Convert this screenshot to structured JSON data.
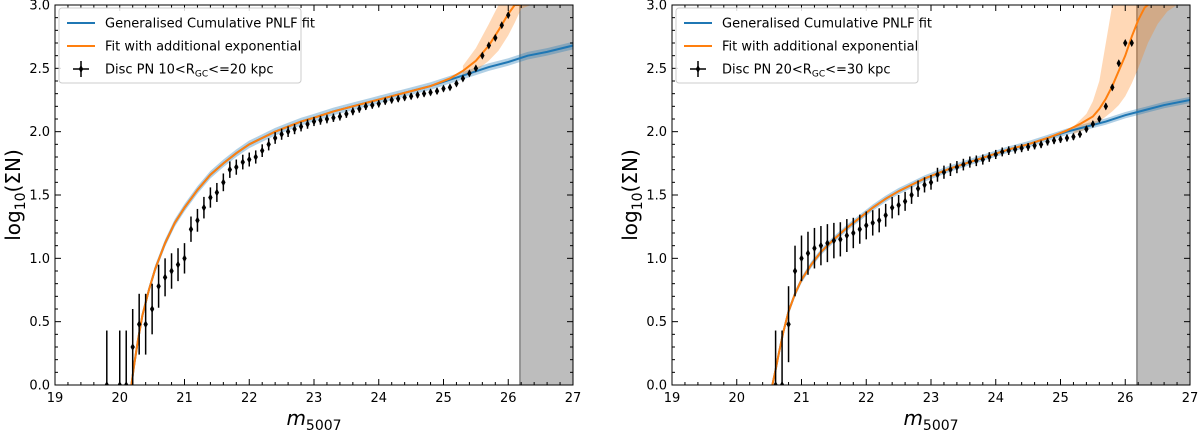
{
  "chart_data": [
    {
      "type": "line",
      "xlabel": "m",
      "xlabel_sub": "5007",
      "ylabel_main": "log",
      "ylabel_sub": "10",
      "ylabel_tail": "(ΣN)",
      "xlim": [
        19,
        27
      ],
      "ylim": [
        0,
        3.0
      ],
      "x_ticks": [
        19,
        20,
        21,
        22,
        23,
        24,
        25,
        26,
        27
      ],
      "y_ticks": [
        0.0,
        0.5,
        1.0,
        1.5,
        2.0,
        2.5,
        3.0
      ],
      "x_tick_labels": [
        "19",
        "20",
        "21",
        "22",
        "23",
        "24",
        "25",
        "26",
        "27"
      ],
      "y_tick_labels": [
        "0.0",
        "0.5",
        "1.0",
        "1.5",
        "2.0",
        "2.5",
        "3.0"
      ],
      "shaded_region": [
        26.18,
        27
      ],
      "legend": {
        "position": "top-left",
        "entries": [
          {
            "label": "Generalised Cumulative PNLF fit",
            "color": "#1f77b4",
            "kind": "line"
          },
          {
            "label": "Fit with additional exponential",
            "color": "#ff7f0e",
            "kind": "line"
          },
          {
            "kind": "errorbar",
            "color": "#000000",
            "pre": "Disc PN 10<R",
            "sub": "GC",
            "post": "<=20 kpc"
          }
        ]
      },
      "series": [
        {
          "name": "Generalised Cumulative PNLF fit",
          "color": "#1f77b4",
          "x": [
            20.18,
            20.22,
            20.28,
            20.35,
            20.45,
            20.55,
            20.7,
            20.85,
            21.0,
            21.2,
            21.4,
            21.6,
            21.8,
            22.0,
            22.2,
            22.4,
            22.6,
            22.8,
            23.0,
            23.3,
            23.6,
            23.9,
            24.2,
            24.5,
            24.8,
            25.1,
            25.4,
            25.7,
            26.0,
            26.3,
            26.6,
            27.0
          ],
          "y": [
            0.0,
            0.15,
            0.35,
            0.55,
            0.75,
            0.92,
            1.12,
            1.28,
            1.4,
            1.54,
            1.66,
            1.75,
            1.83,
            1.9,
            1.95,
            2.0,
            2.04,
            2.08,
            2.11,
            2.16,
            2.2,
            2.24,
            2.28,
            2.32,
            2.36,
            2.41,
            2.46,
            2.51,
            2.55,
            2.6,
            2.63,
            2.68
          ],
          "band_halfwidth": 0.03
        },
        {
          "name": "Fit with additional exponential",
          "color": "#ff7f0e",
          "x": [
            20.18,
            20.22,
            20.28,
            20.35,
            20.45,
            20.55,
            20.7,
            20.85,
            21.0,
            21.2,
            21.4,
            21.6,
            21.8,
            22.0,
            22.2,
            22.4,
            22.6,
            22.8,
            23.0,
            23.3,
            23.6,
            23.9,
            24.2,
            24.5,
            24.8,
            25.1,
            25.3,
            25.5,
            25.7,
            25.85,
            26.0,
            26.1,
            26.2
          ],
          "y": [
            0.0,
            0.15,
            0.35,
            0.55,
            0.75,
            0.92,
            1.12,
            1.28,
            1.4,
            1.54,
            1.66,
            1.75,
            1.83,
            1.9,
            1.95,
            2.0,
            2.04,
            2.08,
            2.11,
            2.16,
            2.2,
            2.24,
            2.28,
            2.32,
            2.36,
            2.42,
            2.48,
            2.56,
            2.68,
            2.8,
            2.93,
            3.0,
            3.0
          ],
          "band": {
            "x": [
              25.3,
              25.5,
              25.7,
              25.85,
              26.0,
              26.1,
              26.2,
              26.35
            ],
            "upper": [
              2.52,
              2.66,
              2.85,
              3.0,
              3.0,
              3.0,
              3.0,
              3.0
            ],
            "lower": [
              2.44,
              2.48,
              2.56,
              2.64,
              2.76,
              2.86,
              2.97,
              3.0
            ]
          }
        },
        {
          "name": "Disc PN 10<R_GC<=20 kpc",
          "kind": "errorbar",
          "x": [
            19.8,
            20.0,
            20.1,
            20.2,
            20.3,
            20.4,
            20.5,
            20.6,
            20.7,
            20.8,
            20.9,
            21.0,
            21.1,
            21.2,
            21.3,
            21.4,
            21.5,
            21.6,
            21.7,
            21.8,
            21.9,
            22.0,
            22.1,
            22.2,
            22.3,
            22.4,
            22.5,
            22.6,
            22.7,
            22.8,
            22.9,
            23.0,
            23.1,
            23.2,
            23.3,
            23.4,
            23.5,
            23.6,
            23.7,
            23.8,
            23.9,
            24.0,
            24.1,
            24.2,
            24.3,
            24.4,
            24.5,
            24.6,
            24.7,
            24.8,
            24.9,
            25.0,
            25.1,
            25.2,
            25.3,
            25.4,
            25.5,
            25.6,
            25.7,
            25.8,
            25.9,
            26.0
          ],
          "y": [
            0.0,
            0.0,
            0.0,
            0.3,
            0.48,
            0.48,
            0.6,
            0.78,
            0.85,
            0.9,
            0.95,
            1.0,
            1.23,
            1.3,
            1.4,
            1.48,
            1.52,
            1.6,
            1.7,
            1.72,
            1.76,
            1.78,
            1.8,
            1.85,
            1.9,
            1.95,
            1.98,
            2.0,
            2.02,
            2.04,
            2.06,
            2.08,
            2.09,
            2.1,
            2.11,
            2.12,
            2.14,
            2.16,
            2.18,
            2.2,
            2.21,
            2.22,
            2.24,
            2.25,
            2.26,
            2.27,
            2.28,
            2.29,
            2.3,
            2.31,
            2.32,
            2.34,
            2.35,
            2.38,
            2.42,
            2.46,
            2.5,
            2.6,
            2.68,
            2.74,
            2.84,
            2.92
          ],
          "err": [
            0.43,
            0.43,
            0.43,
            0.3,
            0.24,
            0.24,
            0.2,
            0.17,
            0.15,
            0.14,
            0.13,
            0.12,
            0.1,
            0.09,
            0.085,
            0.08,
            0.075,
            0.07,
            0.065,
            0.06,
            0.058,
            0.055,
            0.052,
            0.05,
            0.048,
            0.046,
            0.044,
            0.042,
            0.04,
            0.038,
            0.037,
            0.036,
            0.035,
            0.034,
            0.033,
            0.032,
            0.031,
            0.03,
            0.03,
            0.029,
            0.028,
            0.028,
            0.027,
            0.026,
            0.026,
            0.025,
            0.025,
            0.024,
            0.024,
            0.023,
            0.023,
            0.022,
            0.022,
            0.021,
            0.021,
            0.02,
            0.02,
            0.019,
            0.019,
            0.018,
            0.018,
            0.017
          ]
        }
      ]
    },
    {
      "type": "line",
      "xlabel": "m",
      "xlabel_sub": "5007",
      "ylabel_main": "log",
      "ylabel_sub": "10",
      "ylabel_tail": "(ΣN)",
      "xlim": [
        19,
        27
      ],
      "ylim": [
        0,
        3.0
      ],
      "x_ticks": [
        19,
        20,
        21,
        22,
        23,
        24,
        25,
        26,
        27
      ],
      "y_ticks": [
        0.0,
        0.5,
        1.0,
        1.5,
        2.0,
        2.5,
        3.0
      ],
      "x_tick_labels": [
        "19",
        "20",
        "21",
        "22",
        "23",
        "24",
        "25",
        "26",
        "27"
      ],
      "y_tick_labels": [
        "0.0",
        "0.5",
        "1.0",
        "1.5",
        "2.0",
        "2.5",
        "3.0"
      ],
      "shaded_region": [
        26.18,
        27
      ],
      "legend": {
        "position": "top-left",
        "entries": [
          {
            "label": "Generalised Cumulative PNLF fit",
            "color": "#1f77b4",
            "kind": "line"
          },
          {
            "label": "Fit with additional exponential",
            "color": "#ff7f0e",
            "kind": "line"
          },
          {
            "kind": "errorbar",
            "color": "#000000",
            "pre": "Disc PN 20<R",
            "sub": "GC",
            "post": "<=30 kpc"
          }
        ]
      },
      "series": [
        {
          "name": "Generalised Cumulative PNLF fit",
          "color": "#1f77b4",
          "x": [
            20.55,
            20.6,
            20.65,
            20.72,
            20.8,
            20.9,
            21.0,
            21.15,
            21.3,
            21.5,
            21.7,
            21.9,
            22.1,
            22.3,
            22.5,
            22.7,
            22.9,
            23.1,
            23.3,
            23.6,
            23.9,
            24.2,
            24.5,
            24.8,
            25.1,
            25.4,
            25.7,
            26.0,
            26.3,
            26.6,
            27.0
          ],
          "y": [
            0.0,
            0.12,
            0.25,
            0.42,
            0.58,
            0.72,
            0.83,
            0.95,
            1.05,
            1.15,
            1.24,
            1.32,
            1.4,
            1.47,
            1.53,
            1.58,
            1.63,
            1.67,
            1.71,
            1.76,
            1.81,
            1.86,
            1.9,
            1.95,
            2.0,
            2.04,
            2.08,
            2.13,
            2.17,
            2.21,
            2.25
          ],
          "band_halfwidth": 0.025
        },
        {
          "name": "Fit with additional exponential",
          "color": "#ff7f0e",
          "x": [
            20.55,
            20.6,
            20.65,
            20.72,
            20.8,
            20.9,
            21.0,
            21.15,
            21.3,
            21.5,
            21.7,
            21.9,
            22.1,
            22.3,
            22.5,
            22.7,
            22.9,
            23.1,
            23.3,
            23.6,
            23.9,
            24.2,
            24.5,
            24.8,
            25.1,
            25.3,
            25.5,
            25.6,
            25.7,
            25.8,
            25.9,
            26.0,
            26.1,
            26.2,
            26.3,
            26.35
          ],
          "y": [
            0.0,
            0.12,
            0.25,
            0.42,
            0.58,
            0.72,
            0.83,
            0.95,
            1.05,
            1.15,
            1.24,
            1.32,
            1.4,
            1.47,
            1.53,
            1.58,
            1.63,
            1.67,
            1.71,
            1.76,
            1.81,
            1.86,
            1.9,
            1.95,
            2.01,
            2.06,
            2.12,
            2.18,
            2.26,
            2.36,
            2.48,
            2.6,
            2.75,
            2.88,
            2.98,
            3.0
          ],
          "band": {
            "x": [
              25.2,
              25.4,
              25.5,
              25.6,
              25.7,
              25.8,
              25.9,
              26.0,
              26.1,
              26.2,
              26.35,
              26.5,
              26.65,
              26.8
            ],
            "upper": [
              2.04,
              2.14,
              2.24,
              2.4,
              2.7,
              3.0,
              3.0,
              3.0,
              3.0,
              3.0,
              3.0,
              3.0,
              3.0,
              3.0
            ],
            "lower": [
              1.98,
              2.02,
              2.05,
              2.08,
              2.12,
              2.16,
              2.21,
              2.28,
              2.38,
              2.5,
              2.7,
              2.85,
              2.95,
              3.0
            ]
          }
        },
        {
          "name": "Disc PN 20<R_GC<=30 kpc",
          "kind": "errorbar",
          "x": [
            20.6,
            20.7,
            20.8,
            20.9,
            21.0,
            21.1,
            21.2,
            21.3,
            21.4,
            21.5,
            21.6,
            21.7,
            21.8,
            21.9,
            22.0,
            22.1,
            22.2,
            22.3,
            22.4,
            22.5,
            22.6,
            22.7,
            22.8,
            22.9,
            23.0,
            23.1,
            23.2,
            23.3,
            23.4,
            23.5,
            23.6,
            23.7,
            23.8,
            23.9,
            24.0,
            24.1,
            24.2,
            24.3,
            24.4,
            24.5,
            24.6,
            24.7,
            24.8,
            24.9,
            25.0,
            25.1,
            25.2,
            25.3,
            25.4,
            25.5,
            25.6,
            25.7,
            25.8,
            25.9,
            26.0,
            26.1
          ],
          "y": [
            0.0,
            0.0,
            0.48,
            0.9,
            1.0,
            1.04,
            1.08,
            1.1,
            1.12,
            1.14,
            1.15,
            1.18,
            1.2,
            1.23,
            1.26,
            1.28,
            1.3,
            1.34,
            1.4,
            1.42,
            1.45,
            1.5,
            1.55,
            1.58,
            1.6,
            1.66,
            1.68,
            1.7,
            1.72,
            1.74,
            1.76,
            1.77,
            1.78,
            1.8,
            1.82,
            1.84,
            1.85,
            1.86,
            1.87,
            1.88,
            1.89,
            1.9,
            1.92,
            1.93,
            1.94,
            1.95,
            1.96,
            1.98,
            2.02,
            2.06,
            2.1,
            2.2,
            2.35,
            2.54,
            2.7,
            2.7
          ],
          "err": [
            0.43,
            0.43,
            0.3,
            0.2,
            0.18,
            0.17,
            0.16,
            0.155,
            0.15,
            0.14,
            0.135,
            0.13,
            0.12,
            0.115,
            0.11,
            0.1,
            0.095,
            0.09,
            0.085,
            0.08,
            0.075,
            0.07,
            0.065,
            0.06,
            0.058,
            0.055,
            0.052,
            0.05,
            0.048,
            0.046,
            0.044,
            0.042,
            0.04,
            0.038,
            0.036,
            0.035,
            0.034,
            0.033,
            0.032,
            0.031,
            0.03,
            0.03,
            0.029,
            0.028,
            0.028,
            0.027,
            0.026,
            0.026,
            0.025,
            0.025,
            0.024,
            0.024,
            0.023,
            0.023,
            0.022,
            0.022
          ]
        }
      ]
    }
  ]
}
